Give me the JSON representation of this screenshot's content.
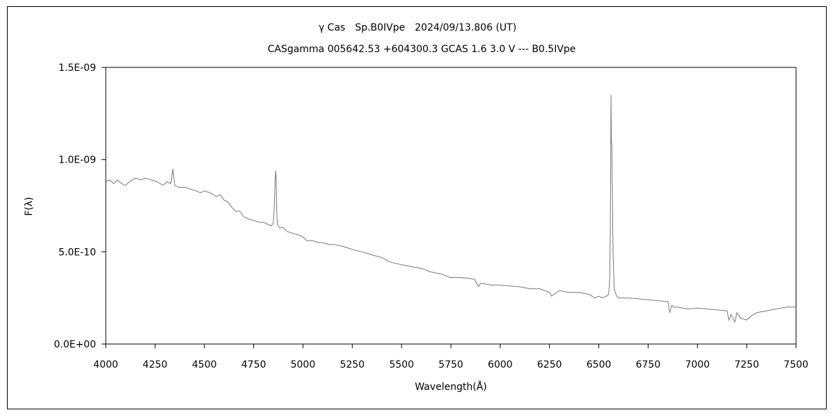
{
  "chart_data": {
    "type": "line",
    "title": "γ Cas　Sp.B0IVpe　2024/09/13.806 (UT)",
    "subtitle": "CASgamma 005642.53 +604300.3 GCAS 1.6 3.0 V --- B0.5IVpe",
    "xlabel": "Wavelength(Å)",
    "ylabel": "F(λ)",
    "xlim": [
      4000,
      7500
    ],
    "ylim": [
      0,
      1.5e-09
    ],
    "grid": false,
    "x_ticks": [
      4000,
      4250,
      4500,
      4750,
      5000,
      5250,
      5500,
      5750,
      6000,
      6250,
      6500,
      6750,
      7000,
      7250,
      7500
    ],
    "x_tick_labels": [
      "4000",
      "4250",
      "4500",
      "4750",
      "5000",
      "5250",
      "5500",
      "5750",
      "6000",
      "6250",
      "6500",
      "6750",
      "7000",
      "7250",
      "7500"
    ],
    "y_ticks": [
      0,
      5e-10,
      1e-09,
      1.5e-09
    ],
    "y_tick_labels": [
      "0.0E+00",
      "5.0E-10",
      "1.0E-09",
      "1.5E-09"
    ],
    "line_color": "#777777",
    "series": [
      {
        "x": [
          4000,
          4020,
          4040,
          4060,
          4080,
          4100,
          4120,
          4150,
          4180,
          4200,
          4230,
          4260,
          4290,
          4310,
          4330,
          4340,
          4350,
          4370,
          4400,
          4430,
          4460,
          4480,
          4500,
          4530,
          4560,
          4580,
          4600,
          4620,
          4640,
          4660,
          4680,
          4700,
          4720,
          4750,
          4780,
          4800,
          4820,
          4840,
          4850,
          4855,
          4858,
          4861,
          4864,
          4867,
          4870,
          4875,
          4880,
          4900,
          4920,
          4950,
          4980,
          5000,
          5020,
          5050,
          5080,
          5100,
          5130,
          5160,
          5200,
          5230,
          5260,
          5300,
          5330,
          5360,
          5400,
          5430,
          5460,
          5500,
          5550,
          5600,
          5650,
          5700,
          5750,
          5800,
          5850,
          5870,
          5880,
          5890,
          5900,
          5950,
          6000,
          6050,
          6100,
          6150,
          6200,
          6250,
          6260,
          6300,
          6350,
          6400,
          6450,
          6480,
          6500,
          6520,
          6540,
          6550,
          6555,
          6558,
          6560,
          6562,
          6564,
          6566,
          6568,
          6572,
          6578,
          6590,
          6600,
          6650,
          6700,
          6750,
          6800,
          6850,
          6860,
          6870,
          6880,
          6900,
          6950,
          7000,
          7050,
          7100,
          7150,
          7160,
          7170,
          7190,
          7200,
          7220,
          7250,
          7270,
          7300,
          7350,
          7400,
          7450,
          7500
        ],
        "values": [
          8.8e-10,
          8.9e-10,
          8.7e-10,
          8.9e-10,
          8.7e-10,
          8.6e-10,
          8.8e-10,
          9e-10,
          8.9e-10,
          9e-10,
          8.9e-10,
          8.8e-10,
          8.6e-10,
          8.8e-10,
          8.7e-10,
          9.5e-10,
          8.6e-10,
          8.5e-10,
          8.5e-10,
          8.4e-10,
          8.3e-10,
          8.2e-10,
          8.3e-10,
          8.2e-10,
          8e-10,
          8.1e-10,
          7.8e-10,
          7.7e-10,
          7.4e-10,
          7.2e-10,
          7.2e-10,
          6.9e-10,
          6.8e-10,
          6.7e-10,
          6.6e-10,
          6.6e-10,
          6.5e-10,
          6.4e-10,
          6.6e-10,
          7.5e-10,
          8.7e-10,
          9.4e-10,
          9e-10,
          7.2e-10,
          6.5e-10,
          6.4e-10,
          6.3e-10,
          6.3e-10,
          6.1e-10,
          6e-10,
          5.9e-10,
          5.8e-10,
          5.6e-10,
          5.6e-10,
          5.5e-10,
          5.5e-10,
          5.4e-10,
          5.4e-10,
          5.3e-10,
          5.2e-10,
          5.1e-10,
          5e-10,
          4.9e-10,
          4.8e-10,
          4.7e-10,
          4.5e-10,
          4.4e-10,
          4.3e-10,
          4.2e-10,
          4.1e-10,
          3.9e-10,
          3.8e-10,
          3.6e-10,
          3.6e-10,
          3.55e-10,
          3.5e-10,
          3.3e-10,
          3.1e-10,
          3.3e-10,
          3.2e-10,
          3.2e-10,
          3.15e-10,
          3.1e-10,
          3e-10,
          3e-10,
          2.8e-10,
          2.6e-10,
          2.9e-10,
          2.8e-10,
          2.8e-10,
          2.7e-10,
          2.5e-10,
          2.6e-10,
          2.5e-10,
          2.6e-10,
          2.7e-10,
          3.5e-10,
          6e-10,
          9.5e-10,
          1.35e-09,
          1.1e-09,
          1.08e-09,
          9e-10,
          5e-10,
          3e-10,
          2.6e-10,
          2.5e-10,
          2.5e-10,
          2.45e-10,
          2.4e-10,
          2.35e-10,
          2.3e-10,
          1.7e-10,
          2.1e-10,
          2e-10,
          2e-10,
          1.9e-10,
          1.95e-10,
          1.9e-10,
          1.85e-10,
          1.8e-10,
          1.3e-10,
          1.6e-10,
          1.2e-10,
          1.7e-10,
          1.4e-10,
          1.3e-10,
          1.5e-10,
          1.7e-10,
          1.8e-10,
          1.9e-10,
          2e-10,
          2e-10
        ]
      }
    ]
  }
}
